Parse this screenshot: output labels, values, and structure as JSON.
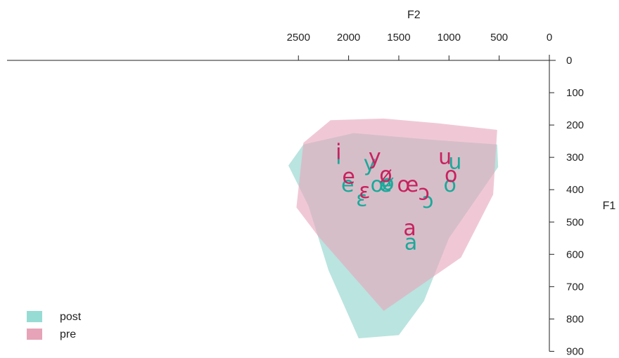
{
  "chart_data": {
    "type": "scatter",
    "title": "",
    "xlabel": "F2",
    "ylabel": "F1",
    "x_reversed": true,
    "y_reversed": true,
    "xlim": [
      2650,
      0
    ],
    "ylim": [
      0,
      900
    ],
    "x_ticks": [
      2500,
      2000,
      1500,
      1000,
      500,
      0
    ],
    "y_ticks": [
      0,
      100,
      200,
      300,
      400,
      500,
      600,
      700,
      800,
      900
    ],
    "legend_position": "bottom-left",
    "legend": [
      {
        "label": "post",
        "color": "#3fbfb0"
      },
      {
        "label": "pre",
        "color": "#d4587e"
      }
    ],
    "series": [
      {
        "name": "post",
        "color": "#1aa99a",
        "fill": "#8fd3cb",
        "hull": [
          [
            2600,
            325
          ],
          [
            2450,
            260
          ],
          [
            1950,
            225
          ],
          [
            1200,
            245
          ],
          [
            520,
            260
          ],
          [
            510,
            330
          ],
          [
            1000,
            550
          ],
          [
            1250,
            745
          ],
          [
            1500,
            850
          ],
          [
            1900,
            860
          ],
          [
            2200,
            650
          ],
          [
            2400,
            450
          ]
        ],
        "points": [
          {
            "label": "i",
            "f2": 2100,
            "f1": 300
          },
          {
            "label": "e",
            "f2": 2010,
            "f1": 385
          },
          {
            "label": "ɛ",
            "f2": 1870,
            "f1": 430
          },
          {
            "label": "y",
            "f2": 1790,
            "f1": 320
          },
          {
            "label": "œ",
            "f2": 1675,
            "f1": 385
          },
          {
            "label": "ø",
            "f2": 1610,
            "f1": 380
          },
          {
            "label": "ɔ",
            "f2": 1210,
            "f1": 435
          },
          {
            "label": "a",
            "f2": 1380,
            "f1": 565
          },
          {
            "label": "o",
            "f2": 990,
            "f1": 385
          },
          {
            "label": "u",
            "f2": 940,
            "f1": 315
          }
        ]
      },
      {
        "name": "pre",
        "color": "#c7225e",
        "fill": "#e6a7bc",
        "hull": [
          [
            2520,
            455
          ],
          [
            2450,
            255
          ],
          [
            2180,
            185
          ],
          [
            1650,
            180
          ],
          [
            1100,
            195
          ],
          [
            520,
            215
          ],
          [
            560,
            415
          ],
          [
            880,
            610
          ],
          [
            1650,
            775
          ],
          [
            2300,
            545
          ]
        ],
        "points": [
          {
            "label": "i",
            "f2": 2100,
            "f1": 285
          },
          {
            "label": "e",
            "f2": 2000,
            "f1": 360
          },
          {
            "label": "ɛ",
            "f2": 1840,
            "f1": 405
          },
          {
            "label": "y",
            "f2": 1740,
            "f1": 300
          },
          {
            "label": "ø",
            "f2": 1630,
            "f1": 355
          },
          {
            "label": "œ",
            "f2": 1410,
            "f1": 385
          },
          {
            "label": "ɔ",
            "f2": 1250,
            "f1": 410
          },
          {
            "label": "a",
            "f2": 1390,
            "f1": 520
          },
          {
            "label": "o",
            "f2": 980,
            "f1": 355
          },
          {
            "label": "u",
            "f2": 1040,
            "f1": 300
          }
        ]
      }
    ]
  }
}
